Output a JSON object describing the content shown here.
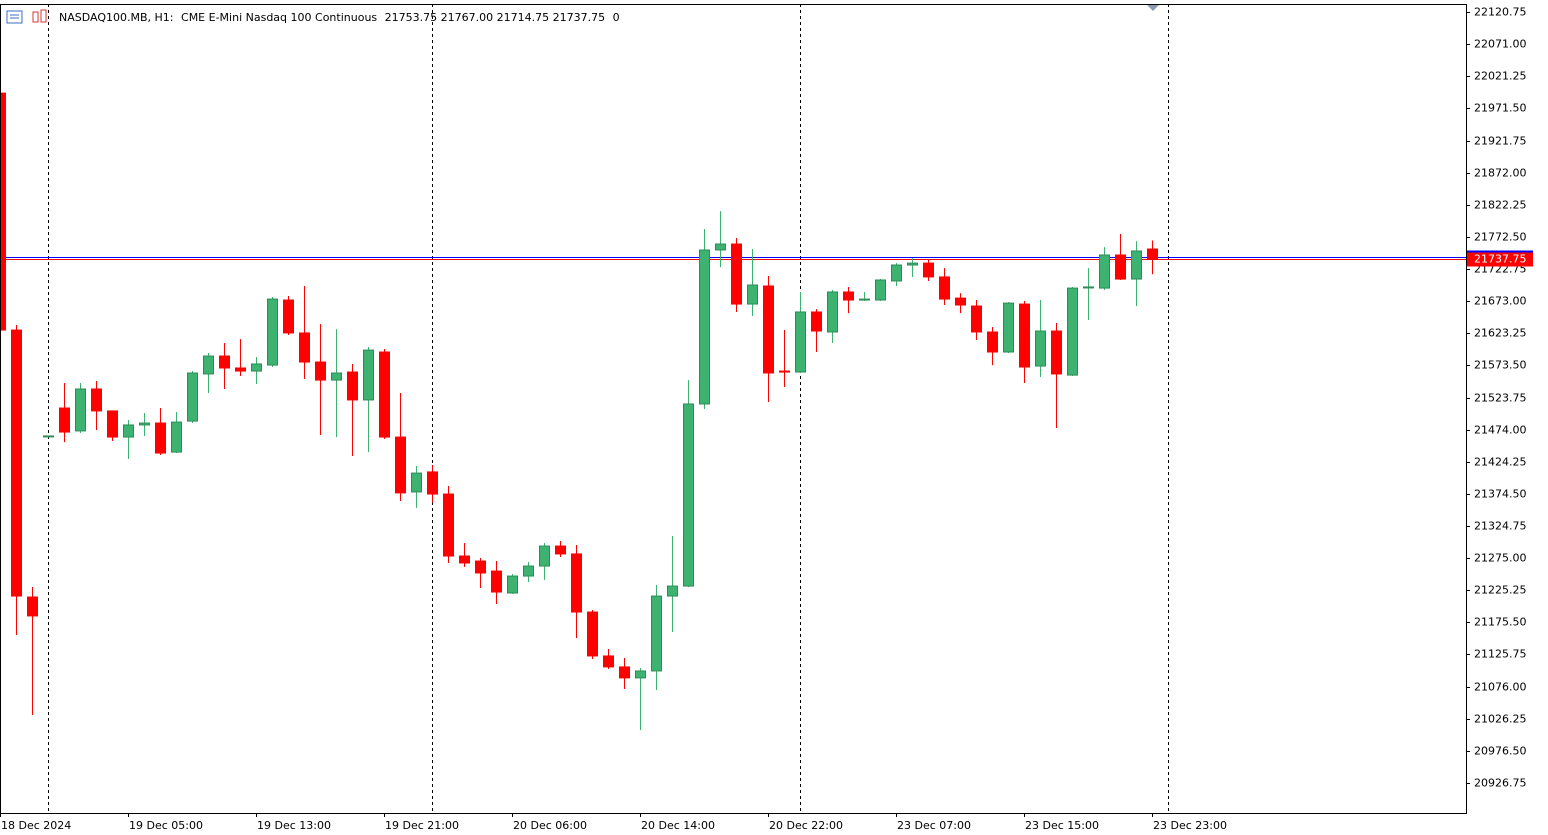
{
  "chart_data": {
    "type": "candlestick",
    "symbol": "NASDAQ100.MB, H1:",
    "title": "CME E-Mini Nasdaq 100 Continuous",
    "header_ohlc": [
      21753.75,
      {
        "value": 21767,
        "label": "21767.00"
      },
      21714.75,
      21737.75
    ],
    "volume": 0,
    "categories": [
      "18 Dec 2024",
      null,
      null,
      null,
      null,
      null,
      null,
      null,
      "19 Dec 05:00",
      null,
      null,
      null,
      null,
      null,
      null,
      null,
      "19 Dec 13:00",
      null,
      null,
      null,
      null,
      null,
      null,
      null,
      "19 Dec 21:00",
      null,
      null,
      null,
      null,
      null,
      null,
      null,
      "20 Dec 06:00",
      null,
      null,
      null,
      null,
      null,
      null,
      null,
      "20 Dec 14:00",
      null,
      null,
      null,
      null,
      null,
      null,
      null,
      "20 Dec 22:00",
      null,
      null,
      null,
      null,
      null,
      null,
      null,
      "23 Dec 07:00",
      null,
      null,
      null,
      null,
      null,
      null,
      null,
      "23 Dec 15:00",
      null,
      null,
      null,
      null,
      null,
      null,
      null,
      "23 Dec 23:00"
    ],
    "open": [
      21995.25,
      21628.25,
      21214.75,
      21464.25,
      21507.5,
      21472,
      21537,
      21503,
      21462.5,
      21481.25,
      21484.25,
      21439.25,
      21487.25,
      21560.25,
      21588,
      21569.5,
      21564.75,
      21574,
      21674.75,
      21623.75,
      21578.75,
      21550.75,
      21563.25,
      21520,
      21594.25,
      21462.5,
      21377.5,
      21408.5,
      21374.25,
      21278.25,
      21270.5,
      21255,
      21221,
      21247.25,
      21262.75,
      21293.75,
      21281.5,
      21191.5,
      21123.5,
      21106.5,
      21089.5,
      21100.25,
      21216.25,
      21231.75,
      21513.75,
      21752.25,
      21761.5,
      21668.5,
      21696.5,
      21564.75,
      21563.25,
      21656.25,
      21625.25,
      21687.25,
      21674.75,
      21674.75,
      21704.25,
      21729,
      21732,
      21710.5,
      21677.75,
      21665.5,
      21625.25,
      21594.25,
      21668.5,
      21572.5,
      21626.75,
      21558.5,
      21694.5,
      21693.25,
      21744.5,
      21707.25,
      21753.75
    ],
    "high": [
      21995.25,
      21636,
      21230.25,
      21465,
      21546.25,
      21546.25,
      21549.25,
      21503,
      21489,
      21499.75,
      21507.5,
      21501.25,
      21564.75,
      21592.75,
      21608.25,
      21614.25,
      21586.5,
      21679.5,
      21681,
      21696.5,
      21637.5,
      21629.75,
      21575.75,
      21602,
      21599,
      21530.75,
      21417.75,
      21419.25,
      21386.75,
      21298.5,
      21275.25,
      21270.5,
      21250.5,
      21269,
      21298.5,
      21301.5,
      21295.25,
      21194.75,
      21134.25,
      21120.25,
      21104.75,
      21233.5,
      21309.25,
      21550.75,
      21784.75,
      21812.5,
      21770.75,
      21753.75,
      21712,
      21628.25,
      21687.25,
      21660.75,
      21690.25,
      21695,
      21687.25,
      21707.25,
      21732,
      21739.75,
      21738.25,
      21724.25,
      21685.5,
      21674.75,
      21633,
      21671.75,
      21673.25,
      21674.75,
      21639.25,
      21695,
      21724.25,
      21756.75,
      21777,
      21766,
      21767
    ],
    "low": [
      21628.25,
      21156,
      21032,
      21463.5,
      21454.75,
      21468.75,
      21473.5,
      21456.5,
      21428.5,
      21464.25,
      21434.75,
      21437.75,
      21484.25,
      21530.75,
      21537,
      21557,
      21544.75,
      21571,
      21620.5,
      21552.5,
      21465.75,
      21462.5,
      21433.25,
      21439.25,
      21459.5,
      21363.5,
      21352.75,
      21360.5,
      21267.5,
      21261.25,
      21228.75,
      21204,
      21219.5,
      21238,
      21241.25,
      21276.75,
      21151.25,
      21118.75,
      21103.25,
      21072.25,
      21008.75,
      21070.75,
      21160.5,
      21230.25,
      21506,
      21725.75,
      21656.25,
      21650,
      21516.75,
      21540,
      21561.75,
      21594.25,
      21608.25,
      21654.5,
      21673.25,
      21673.25,
      21696.5,
      21710.5,
      21704.25,
      21667,
      21654.5,
      21612.75,
      21574,
      21592.75,
      21546.25,
      21555.5,
      21476.5,
      21557,
      21643.75,
      21690.25,
      21705.75,
      21665.5,
      21714.75
    ],
    "close": [
      21628.25,
      21216.25,
      21185.5,
      21464.25,
      21470.25,
      21537,
      21503,
      21462.5,
      21481.25,
      21484.25,
      21437.75,
      21485.75,
      21561.75,
      21588,
      21569.5,
      21564.75,
      21575.75,
      21676.25,
      21623.75,
      21578.75,
      21550.75,
      21561.75,
      21520,
      21597.25,
      21462.5,
      21376,
      21406.75,
      21374.25,
      21278.25,
      21267.5,
      21252,
      21222.5,
      21247.25,
      21262.75,
      21293.75,
      21281.5,
      21191.5,
      21123.5,
      21106.5,
      21089.5,
      21100.25,
      21216.25,
      21231.75,
      21513.75,
      21752.25,
      21761.5,
      21668.5,
      21698,
      21561.75,
      21563.25,
      21656.25,
      21626.75,
      21687.25,
      21674.75,
      21676.25,
      21705.75,
      21729,
      21732,
      21710.5,
      21676.25,
      21667,
      21625.25,
      21594.25,
      21670,
      21571,
      21626.75,
      21560.25,
      21693.25,
      21695,
      21744.5,
      21707.25,
      21750.75,
      21737.75
    ],
    "up_color": "#3cb371",
    "down_color": "#ff0000",
    "bid": 21737.75,
    "ask": 21741.5,
    "bid_color": "#ff0000",
    "ask_color": "#0000ff",
    "ylim": [
      20880.25,
      22133.25
    ],
    "yticks": [
      22120.75,
      {
        "value": 22071,
        "label": "22071.00"
      },
      22021.25,
      {
        "value": 21971.5,
        "label": "21971.50"
      },
      21921.75,
      {
        "value": 21872,
        "label": "21872.00"
      },
      21822.25,
      {
        "value": 21772.5,
        "label": "21772.50"
      },
      21722.75,
      {
        "value": 21673,
        "label": "21673.00"
      },
      21623.25,
      {
        "value": 21573.5,
        "label": "21573.50"
      },
      21523.75,
      {
        "value": 21474,
        "label": "21474.00"
      },
      21424.25,
      {
        "value": 21374.5,
        "label": "21374.50"
      },
      21324.75,
      {
        "value": 21275,
        "label": "21275.00"
      },
      21225.25,
      {
        "value": 21175.5,
        "label": "21175.50"
      },
      21125.75,
      {
        "value": 21076,
        "label": "21076.00"
      },
      21026.25,
      {
        "value": 20976.5,
        "label": "20976.50"
      },
      20926.75
    ]
  }
}
